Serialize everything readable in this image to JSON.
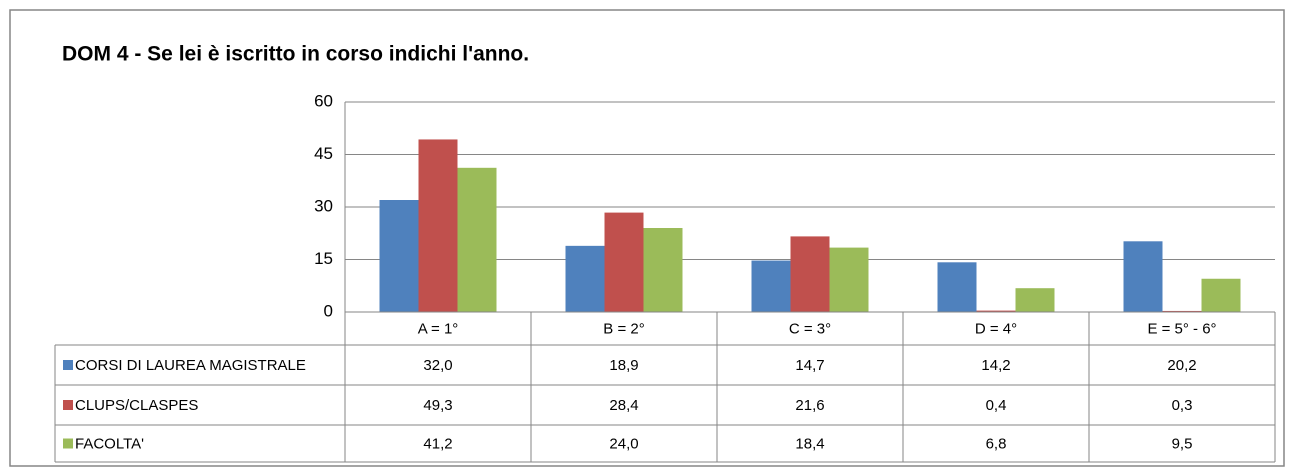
{
  "chart_data": {
    "type": "bar",
    "title": "DOM 4 - Se lei è iscritto in corso indichi l'anno.",
    "categories": [
      "A = 1°",
      "B = 2°",
      "C = 3°",
      "D = 4°",
      "E = 5° - 6°"
    ],
    "series": [
      {
        "name": "CORSI DI LAUREA MAGISTRALE",
        "color": "#4f81bd",
        "values": [
          32.0,
          18.9,
          14.7,
          14.2,
          20.2
        ],
        "value_labels": [
          "32,0",
          "18,9",
          "14,7",
          "14,2",
          "20,2"
        ]
      },
      {
        "name": "CLUPS/CLASPES",
        "color": "#c0504d",
        "values": [
          49.3,
          28.4,
          21.6,
          0.4,
          0.3
        ],
        "value_labels": [
          "49,3",
          "28,4",
          "21,6",
          "0,4",
          "0,3"
        ]
      },
      {
        "name": "FACOLTA'",
        "color": "#9bbb59",
        "values": [
          41.2,
          24.0,
          18.4,
          6.8,
          9.5
        ],
        "value_labels": [
          "41,2",
          "24,0",
          "18,4",
          "6,8",
          "9,5"
        ]
      }
    ],
    "ylim": [
      0,
      60
    ],
    "yticks": [
      0,
      15,
      30,
      45,
      60
    ],
    "grid": true
  }
}
